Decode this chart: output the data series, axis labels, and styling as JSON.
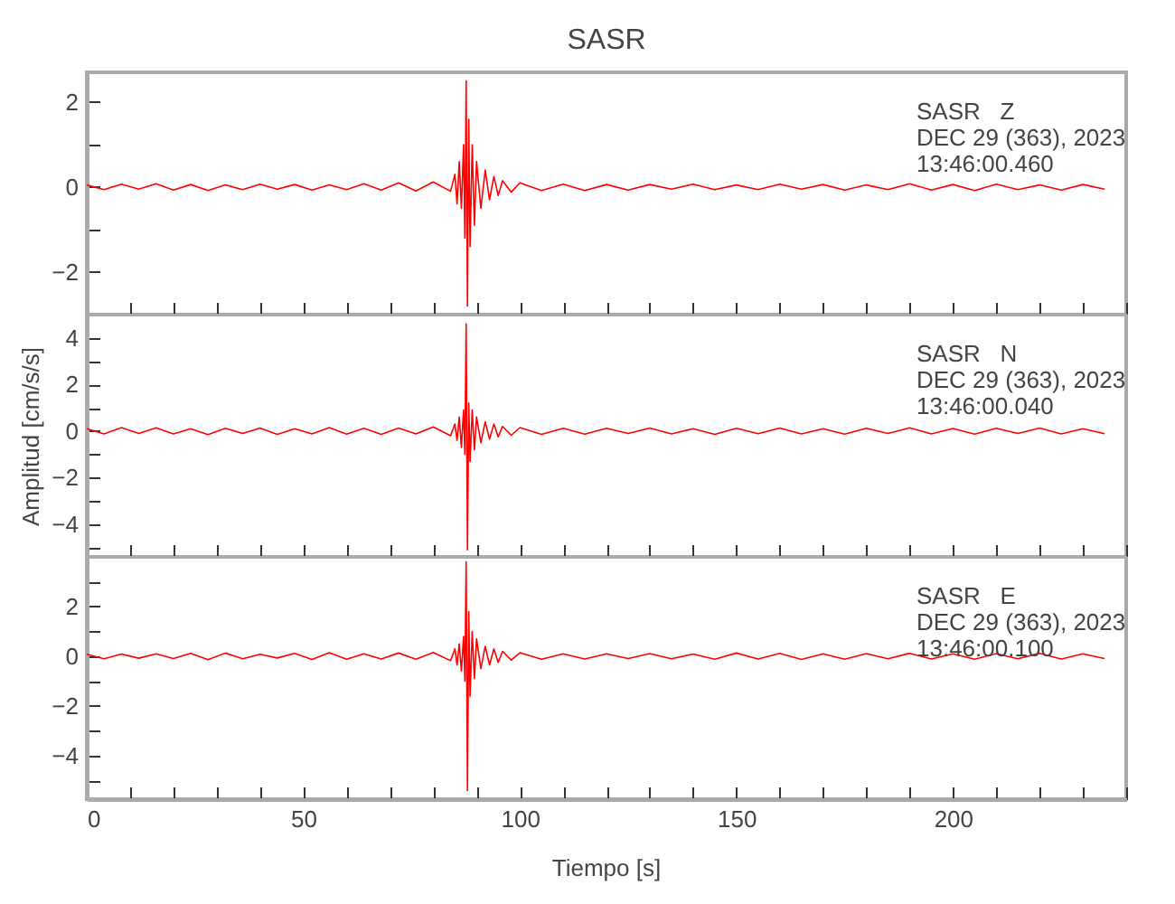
{
  "chart_data": [
    {
      "type": "line",
      "title": "SASR",
      "annotations": [
        "SASR   Z",
        "DEC 29 (363), 2023",
        "13:46:00.460"
      ],
      "tick_labels": "y",
      "grid": false,
      "x": [
        0,
        4,
        8,
        12,
        16,
        20,
        24,
        28,
        32,
        36,
        40,
        44,
        48,
        52,
        56,
        60,
        64,
        68,
        72,
        76,
        80,
        84,
        85,
        85.5,
        86,
        86.5,
        87,
        87.3,
        87.6,
        87.9,
        88.2,
        88.5,
        89,
        89.5,
        90,
        91,
        92,
        93,
        94,
        95,
        96,
        98,
        100,
        105,
        110,
        115,
        120,
        125,
        130,
        135,
        140,
        145,
        150,
        155,
        160,
        165,
        170,
        175,
        180,
        185,
        190,
        195,
        200,
        205,
        210,
        215,
        220,
        225,
        230,
        235
      ],
      "xlim": [
        0,
        240
      ],
      "xticks": [
        0,
        {
          "value": 10,
          "label": null
        },
        {
          "value": 20,
          "label": null
        },
        {
          "value": 30,
          "label": null
        },
        {
          "value": 40,
          "label": null
        },
        50,
        {
          "value": 60,
          "label": null
        },
        {
          "value": 70,
          "label": null
        },
        {
          "value": 80,
          "label": null
        },
        {
          "value": 90,
          "label": null
        },
        100,
        {
          "value": 110,
          "label": null
        },
        {
          "value": 120,
          "label": null
        },
        {
          "value": 130,
          "label": null
        },
        {
          "value": 140,
          "label": null
        },
        150,
        {
          "value": 160,
          "label": null
        },
        {
          "value": 170,
          "label": null
        },
        {
          "value": 180,
          "label": null
        },
        {
          "value": 190,
          "label": null
        },
        200,
        {
          "value": 210,
          "label": null
        },
        {
          "value": 220,
          "label": null
        },
        {
          "value": 230,
          "label": null
        },
        {
          "value": 240,
          "label": null
        }
      ],
      "ylim": [
        -3,
        2.7
      ],
      "yticks": [
        {
          "value": -3,
          "label": null
        },
        -2,
        {
          "value": -1,
          "label": null
        },
        0,
        {
          "value": 1,
          "label": null
        },
        2
      ],
      "series": [
        {
          "color": "#ff0000",
          "values": [
            0.05,
            -0.06,
            0.07,
            -0.05,
            0.08,
            -0.07,
            0.06,
            -0.08,
            0.05,
            -0.06,
            0.07,
            -0.05,
            0.06,
            -0.07,
            0.05,
            -0.06,
            0.08,
            -0.07,
            0.1,
            -0.09,
            0.12,
            -0.1,
            0.3,
            -0.4,
            0.6,
            -0.5,
            1.0,
            -1.2,
            2.5,
            -2.8,
            1.6,
            -1.4,
            1.0,
            -0.9,
            0.6,
            -0.5,
            0.4,
            -0.3,
            0.25,
            -0.2,
            0.15,
            -0.12,
            0.1,
            -0.08,
            0.07,
            -0.08,
            0.06,
            -0.07,
            0.06,
            -0.05,
            0.07,
            -0.06,
            0.05,
            -0.06,
            0.07,
            -0.05,
            0.06,
            -0.07,
            0.05,
            -0.06,
            0.08,
            -0.07,
            0.06,
            -0.08,
            0.07,
            -0.06,
            0.05,
            -0.07,
            0.06,
            -0.05
          ]
        }
      ]
    },
    {
      "type": "line",
      "ylabel": "Amplitud [cm/s/s]",
      "annotations": [
        "SASR   N",
        "DEC 29 (363), 2023",
        "13:46:00.040"
      ],
      "tick_labels": "y",
      "grid": false,
      "x": [
        0,
        4,
        8,
        12,
        16,
        20,
        24,
        28,
        32,
        36,
        40,
        44,
        48,
        52,
        56,
        60,
        64,
        68,
        72,
        76,
        80,
        84,
        85,
        85.5,
        86,
        86.5,
        87,
        87.3,
        87.6,
        87.9,
        88.2,
        88.5,
        89,
        89.5,
        90,
        91,
        92,
        93,
        94,
        95,
        96,
        98,
        100,
        105,
        110,
        115,
        120,
        125,
        130,
        135,
        140,
        145,
        150,
        155,
        160,
        165,
        170,
        175,
        180,
        185,
        190,
        195,
        200,
        205,
        210,
        215,
        220,
        225,
        230,
        235
      ],
      "xlim": [
        0,
        240
      ],
      "xticks": [
        0,
        {
          "value": 10,
          "label": null
        },
        {
          "value": 20,
          "label": null
        },
        {
          "value": 30,
          "label": null
        },
        {
          "value": 40,
          "label": null
        },
        50,
        {
          "value": 60,
          "label": null
        },
        {
          "value": 70,
          "label": null
        },
        {
          "value": 80,
          "label": null
        },
        {
          "value": 90,
          "label": null
        },
        100,
        {
          "value": 110,
          "label": null
        },
        {
          "value": 120,
          "label": null
        },
        {
          "value": 130,
          "label": null
        },
        {
          "value": 140,
          "label": null
        },
        150,
        {
          "value": 160,
          "label": null
        },
        {
          "value": 170,
          "label": null
        },
        {
          "value": 180,
          "label": null
        },
        {
          "value": 190,
          "label": null
        },
        200,
        {
          "value": 210,
          "label": null
        },
        {
          "value": 220,
          "label": null
        },
        {
          "value": 230,
          "label": null
        },
        {
          "value": 240,
          "label": null
        }
      ],
      "ylim": [
        -5.4,
        5
      ],
      "yticks": [
        {
          "value": -5,
          "label": null
        },
        -4,
        {
          "value": -3,
          "label": null
        },
        -2,
        {
          "value": -1,
          "label": null
        },
        0,
        {
          "value": 1,
          "label": null
        },
        2,
        {
          "value": 3,
          "label": null
        },
        4
      ],
      "series": [
        {
          "color": "#ff0000",
          "values": [
            0.1,
            -0.12,
            0.15,
            -0.1,
            0.14,
            -0.12,
            0.1,
            -0.15,
            0.12,
            -0.1,
            0.13,
            -0.14,
            0.1,
            -0.12,
            0.15,
            -0.13,
            0.12,
            -0.14,
            0.13,
            -0.12,
            0.18,
            -0.2,
            0.3,
            -0.4,
            0.6,
            -0.7,
            0.9,
            -1.0,
            4.6,
            -5.1,
            1.2,
            -1.3,
            0.9,
            -0.8,
            0.6,
            -0.5,
            0.4,
            -0.35,
            0.3,
            -0.25,
            0.2,
            -0.18,
            0.15,
            -0.14,
            0.12,
            -0.13,
            0.12,
            -0.1,
            0.13,
            -0.12,
            0.1,
            -0.14,
            0.12,
            -0.11,
            0.13,
            -0.12,
            0.1,
            -0.13,
            0.12,
            -0.1,
            0.14,
            -0.12,
            0.11,
            -0.13,
            0.12,
            -0.1,
            0.13,
            -0.12,
            0.1,
            -0.11
          ]
        }
      ]
    },
    {
      "type": "line",
      "xlabel": "Tiempo [s]",
      "annotations": [
        "SASR   E",
        "DEC 29 (363), 2023",
        "13:46:00.100"
      ],
      "grid": false,
      "x": [
        0,
        4,
        8,
        12,
        16,
        20,
        24,
        28,
        32,
        36,
        40,
        44,
        48,
        52,
        56,
        60,
        64,
        68,
        72,
        76,
        80,
        84,
        85,
        85.5,
        86,
        86.5,
        87,
        87.3,
        87.6,
        87.9,
        88.2,
        88.5,
        89,
        89.5,
        90,
        91,
        92,
        93,
        94,
        95,
        96,
        98,
        100,
        105,
        110,
        115,
        120,
        125,
        130,
        135,
        140,
        145,
        150,
        155,
        160,
        165,
        170,
        175,
        180,
        185,
        190,
        195,
        200,
        205,
        210,
        215,
        220,
        225,
        230,
        235
      ],
      "xlim": [
        0,
        240
      ],
      "xticks": [
        0,
        {
          "value": 10,
          "label": null
        },
        {
          "value": 20,
          "label": null
        },
        {
          "value": 30,
          "label": null
        },
        {
          "value": 40,
          "label": null
        },
        50,
        {
          "value": 60,
          "label": null
        },
        {
          "value": 70,
          "label": null
        },
        {
          "value": 80,
          "label": null
        },
        {
          "value": 90,
          "label": null
        },
        100,
        {
          "value": 110,
          "label": null
        },
        {
          "value": 120,
          "label": null
        },
        {
          "value": 130,
          "label": null
        },
        {
          "value": 140,
          "label": null
        },
        150,
        {
          "value": 160,
          "label": null
        },
        {
          "value": 170,
          "label": null
        },
        {
          "value": 180,
          "label": null
        },
        {
          "value": 190,
          "label": null
        },
        200,
        {
          "value": 210,
          "label": null
        },
        {
          "value": 220,
          "label": null
        },
        {
          "value": 230,
          "label": null
        },
        {
          "value": 240,
          "label": null
        }
      ],
      "ylim": [
        -5.75,
        4
      ],
      "yticks": [
        {
          "value": -5,
          "label": null
        },
        -4,
        {
          "value": -3,
          "label": null
        },
        -2,
        {
          "value": -1,
          "label": null
        },
        0,
        {
          "value": 1,
          "label": null
        },
        2,
        {
          "value": 3,
          "label": null
        }
      ],
      "series": [
        {
          "color": "#ff0000",
          "values": [
            0.08,
            -0.1,
            0.09,
            -0.08,
            0.1,
            -0.09,
            0.12,
            -0.14,
            0.13,
            -0.1,
            0.08,
            -0.07,
            0.12,
            -0.13,
            0.14,
            -0.12,
            0.1,
            -0.11,
            0.13,
            -0.12,
            0.15,
            -0.18,
            0.3,
            -0.35,
            0.5,
            -0.6,
            0.8,
            -1.0,
            3.8,
            -5.4,
            1.8,
            -1.6,
            1.0,
            -0.9,
            0.7,
            -0.5,
            0.4,
            -0.35,
            0.3,
            -0.25,
            0.2,
            -0.15,
            0.14,
            -0.12,
            0.1,
            -0.11,
            0.1,
            -0.09,
            0.11,
            -0.1,
            0.09,
            -0.12,
            0.13,
            -0.11,
            0.12,
            -0.13,
            0.1,
            -0.12,
            0.11,
            -0.1,
            0.12,
            -0.11,
            0.1,
            -0.12,
            0.11,
            -0.1,
            0.12,
            -0.11,
            0.1,
            -0.09
          ]
        }
      ]
    }
  ]
}
